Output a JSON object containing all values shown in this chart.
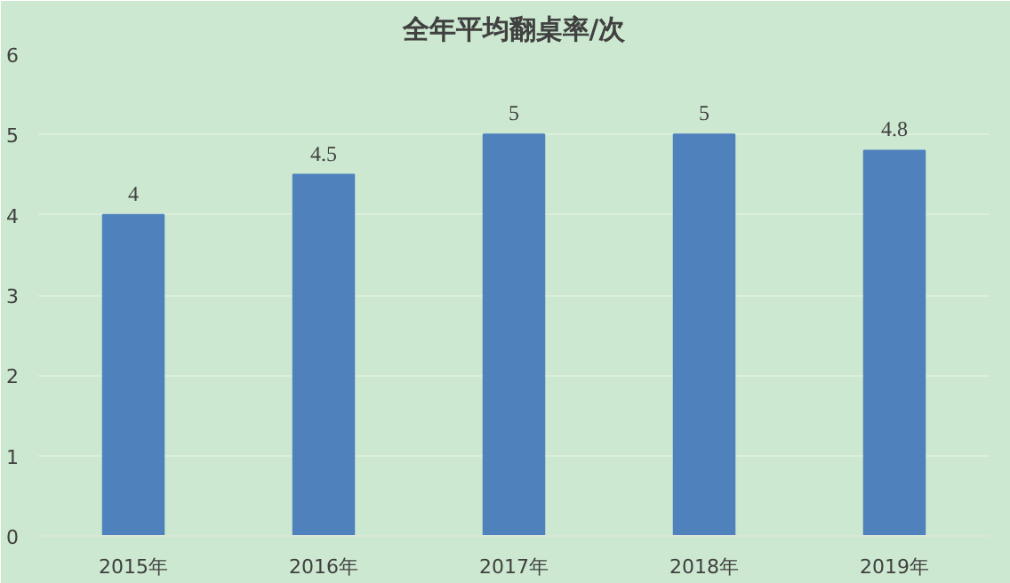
{
  "chart_data": {
    "type": "bar",
    "title": "全年平均翻桌率/次",
    "categories": [
      "2015年",
      "2016年",
      "2017年",
      "2018年",
      "2019年"
    ],
    "values": [
      4,
      4.5,
      5,
      5,
      4.8
    ],
    "color": "#4f81bd",
    "ylim": [
      0,
      6
    ],
    "yticks": [
      0,
      1,
      2,
      3,
      4,
      5,
      6
    ],
    "grid": "y",
    "data_labels": true
  }
}
